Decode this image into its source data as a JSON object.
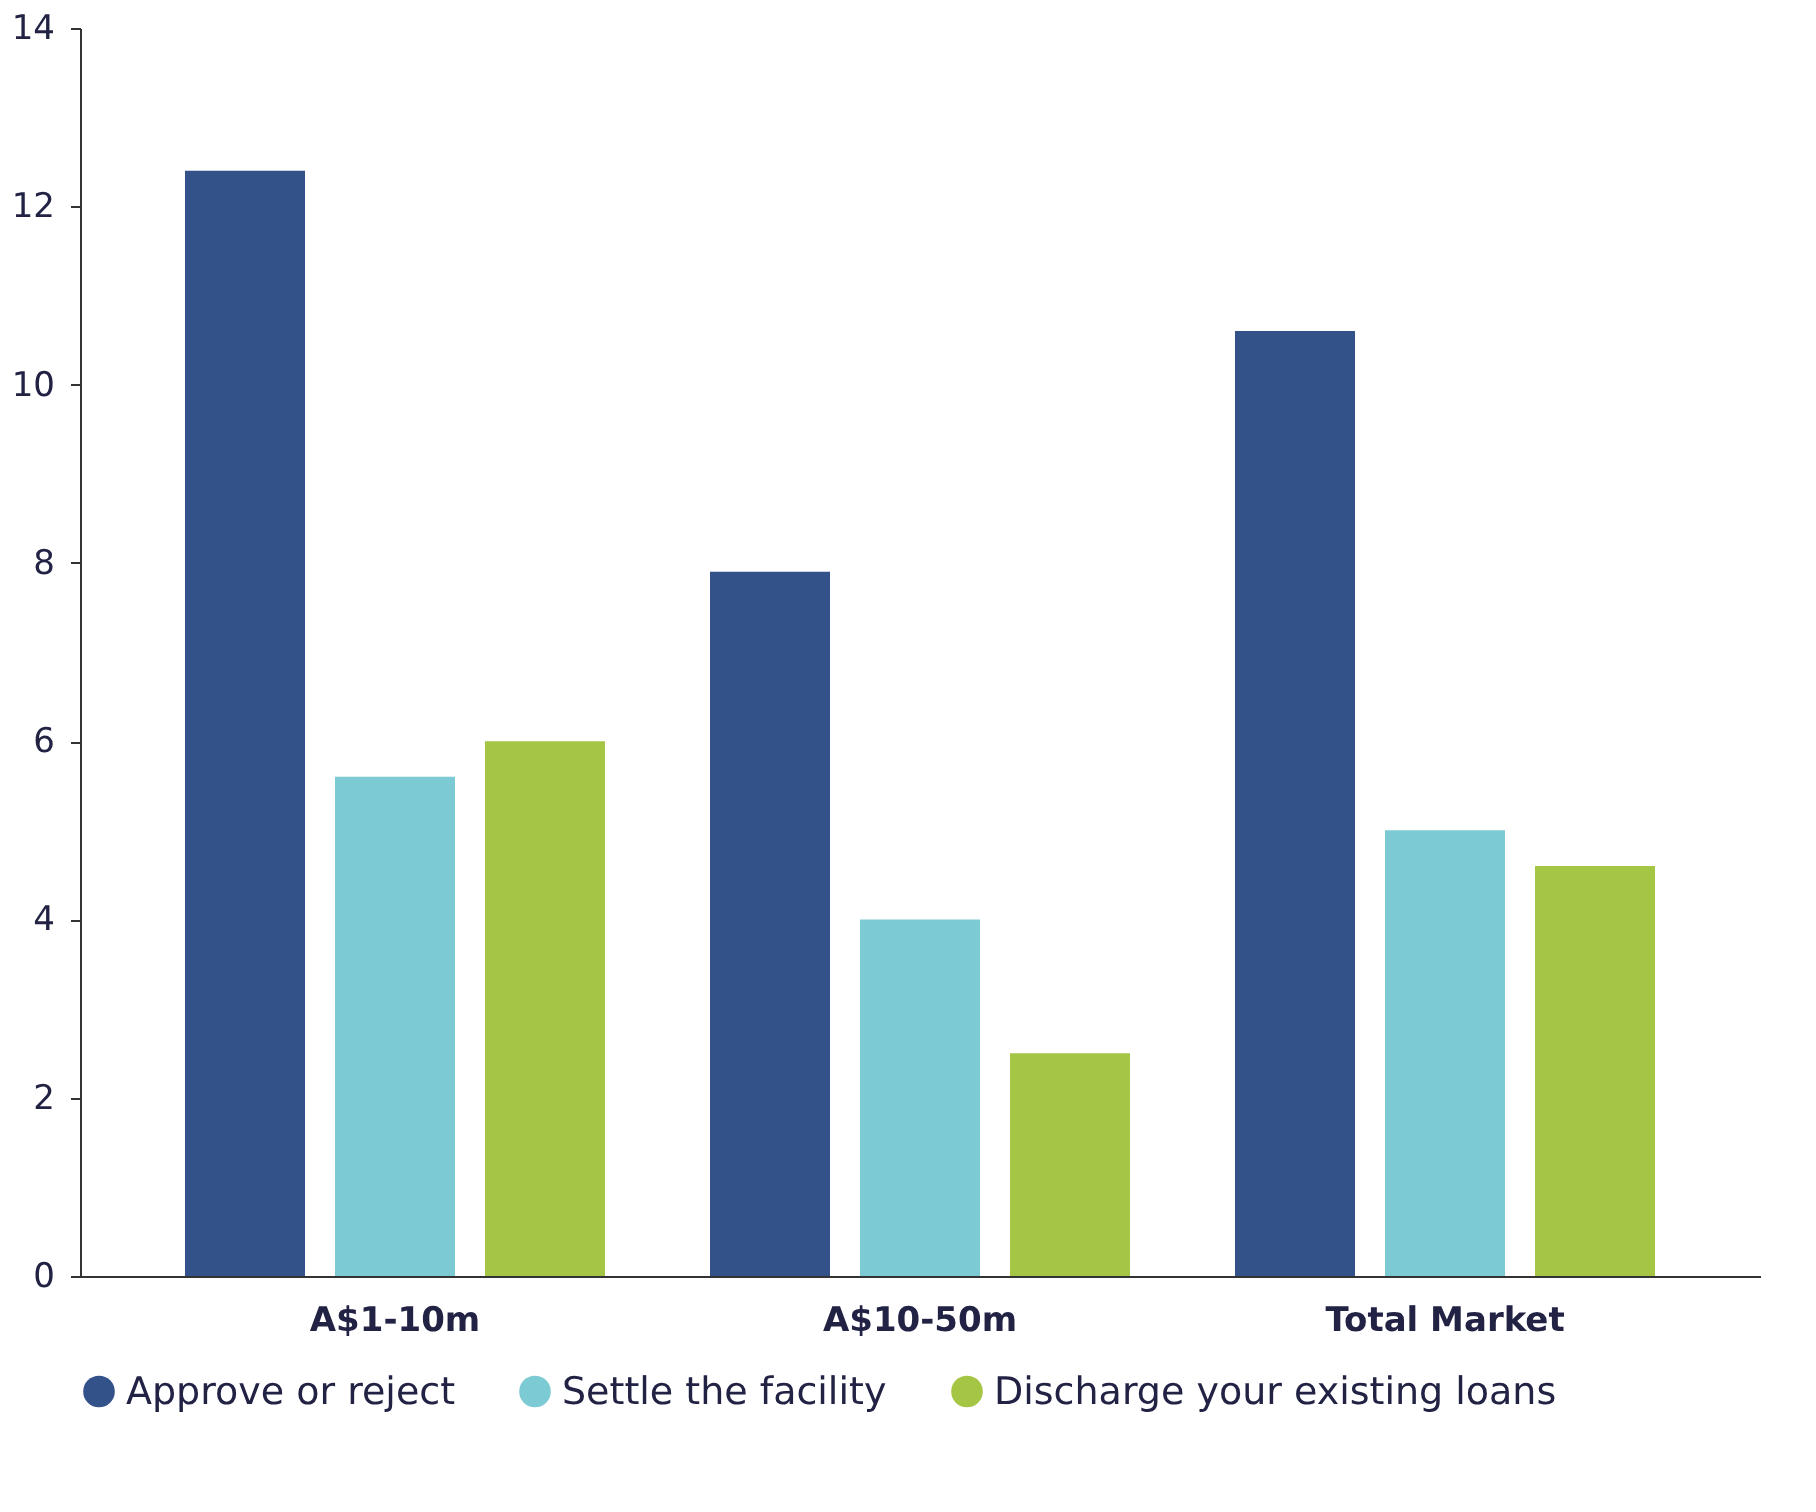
{
  "chart_data": {
    "type": "bar",
    "categories": [
      "A$1-10m",
      "A$10-50m",
      "Total Market"
    ],
    "series": [
      {
        "name": "Approve or reject",
        "color": "#33528a",
        "values": [
          12.4,
          7.9,
          10.6
        ]
      },
      {
        "name": "Settle the facility",
        "color": "#7ccad3",
        "values": [
          5.6,
          4.0,
          5.0
        ]
      },
      {
        "name": "Discharge your existing loans",
        "color": "#a5c545",
        "values": [
          6.0,
          2.5,
          4.6
        ]
      }
    ],
    "ylim": [
      0,
      14
    ],
    "yticks": [
      0,
      2,
      4,
      6,
      8,
      10,
      12,
      14
    ],
    "grid": false,
    "legend": "bottom"
  }
}
